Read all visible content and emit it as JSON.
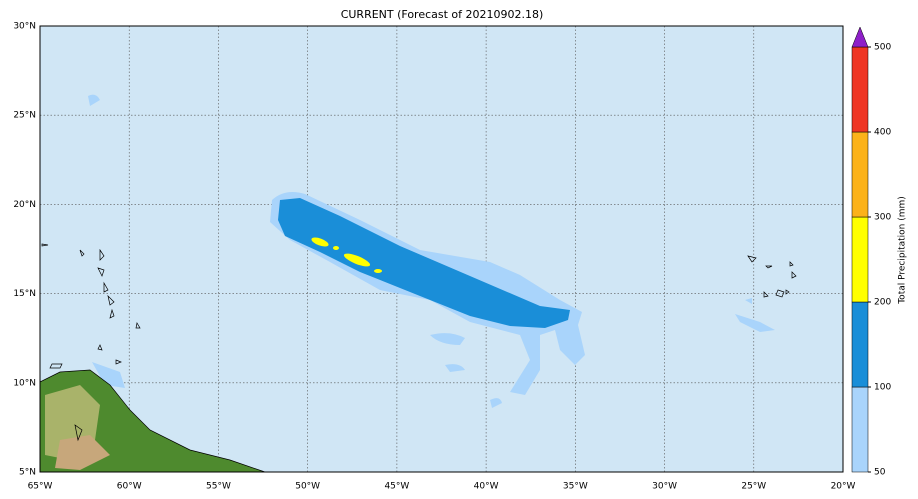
{
  "title": "CURRENT (Forecast of 20210902.18)",
  "map": {
    "lonlim": [
      -65,
      -20
    ],
    "latlim": [
      5,
      30
    ],
    "lon_ticks": [
      {
        "value": -65,
        "label": "65°W"
      },
      {
        "value": -60,
        "label": "60°W"
      },
      {
        "value": -55,
        "label": "55°W"
      },
      {
        "value": -50,
        "label": "50°W"
      },
      {
        "value": -45,
        "label": "45°W"
      },
      {
        "value": -40,
        "label": "40°W"
      },
      {
        "value": -35,
        "label": "35°W"
      },
      {
        "value": -30,
        "label": "30°W"
      },
      {
        "value": -25,
        "label": "25°W"
      },
      {
        "value": -20,
        "label": "20°W"
      }
    ],
    "lat_ticks": [
      {
        "value": 5,
        "label": "5°N"
      },
      {
        "value": 10,
        "label": "10°N"
      },
      {
        "value": 15,
        "label": "15°N"
      },
      {
        "value": 20,
        "label": "20°N"
      },
      {
        "value": 25,
        "label": "25°N"
      },
      {
        "value": 30,
        "label": "30°N"
      }
    ],
    "grid": true
  },
  "colorbar": {
    "label": "Total Precipitation (mm)",
    "levels": [
      50,
      100,
      200,
      300,
      400,
      500
    ],
    "colors": [
      "#a9d4fb",
      "#1a8ed8",
      "#ffff00",
      "#fbb21a",
      "#ee3523"
    ],
    "extend_color": "#8e1fc8"
  }
}
